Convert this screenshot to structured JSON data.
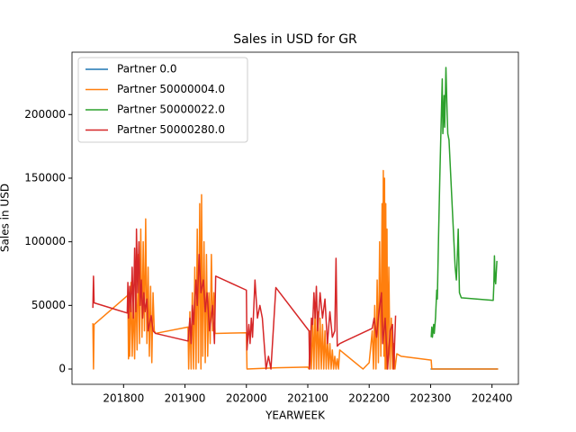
{
  "chart_data": {
    "type": "line",
    "title": "Sales in USD for GR",
    "xlabel": "YEARWEEK",
    "ylabel": "Sales in USD",
    "xlim": [
      201716,
      202443
    ],
    "xticks": [
      201800,
      201900,
      202000,
      202100,
      202200,
      202300,
      202400
    ],
    "ylim": [
      -12000,
      249000
    ],
    "yticks": [
      0,
      50000,
      100000,
      150000,
      200000
    ],
    "legend": "upper left",
    "series": [
      {
        "name": "Partner 0.0",
        "color": "#1f77b4",
        "x": [
          202300,
          202410
        ],
        "values": [
          0,
          0
        ]
      },
      {
        "name": "Partner 50000004.0",
        "color": "#ff7f0e",
        "x": [
          201750,
          201751,
          201752,
          201807,
          201808,
          201809,
          201810,
          201812,
          201814,
          201816,
          201818,
          201820,
          201822,
          201824,
          201826,
          201828,
          201830,
          201832,
          201834,
          201836,
          201838,
          201840,
          201842,
          201844,
          201846,
          201848,
          201850,
          201852,
          201905,
          201906,
          201908,
          201910,
          201912,
          201914,
          201916,
          201918,
          201920,
          201922,
          201924,
          201926,
          201927,
          201929,
          201931,
          201933,
          201935,
          201937,
          201939,
          201941,
          201943,
          201945,
          201947,
          201949,
          202000,
          202001,
          202050,
          202100,
          202102,
          202104,
          202106,
          202108,
          202110,
          202112,
          202114,
          202116,
          202118,
          202120,
          202122,
          202124,
          202126,
          202128,
          202130,
          202132,
          202134,
          202136,
          202138,
          202140,
          202142,
          202144,
          202146,
          202148,
          202150,
          202152,
          202190,
          202200,
          202205,
          202207,
          202209,
          202211,
          202213,
          202215,
          202217,
          202219,
          202221,
          202222,
          202223,
          202224,
          202225,
          202226,
          202227,
          202228,
          202229,
          202230,
          202232,
          202234,
          202236,
          202238,
          202240,
          202242,
          202245,
          202252,
          202301,
          202302,
          202410
        ],
        "values": [
          36000,
          0,
          35000,
          58000,
          8000,
          60000,
          10000,
          68000,
          10000,
          55000,
          8000,
          70000,
          15000,
          90000,
          20000,
          110000,
          25000,
          100000,
          30000,
          118000,
          20000,
          80000,
          10000,
          65000,
          5000,
          60000,
          30000,
          28000,
          33000,
          0,
          45000,
          0,
          60000,
          0,
          80000,
          0,
          110000,
          5000,
          130000,
          0,
          137000,
          10000,
          100000,
          5000,
          90000,
          10000,
          60000,
          20000,
          90000,
          30000,
          60000,
          28000,
          28500,
          0,
          1000,
          1500,
          0,
          30000,
          0,
          40000,
          0,
          50000,
          0,
          45000,
          0,
          40000,
          0,
          35000,
          0,
          30000,
          0,
          25000,
          0,
          20000,
          0,
          15000,
          0,
          10000,
          0,
          8000,
          0,
          15000,
          0,
          5000,
          30000,
          0,
          50000,
          0,
          70000,
          5000,
          100000,
          10000,
          130000,
          20000,
          156000,
          10000,
          150000,
          0,
          130000,
          0,
          110000,
          5000,
          80000,
          0,
          40000,
          0,
          20000,
          0,
          12000,
          10000,
          7000,
          0,
          0
        ]
      },
      {
        "name": "Partner 50000022.0",
        "color": "#2ca02c",
        "x": [
          202301,
          202302,
          202303,
          202305,
          202306,
          202308,
          202310,
          202311,
          202313,
          202315,
          202317,
          202319,
          202320,
          202322,
          202323,
          202325,
          202327,
          202328,
          202330,
          202333,
          202338,
          202340,
          202342,
          202344,
          202345,
          202347,
          202350,
          202402,
          202403,
          202404,
          202405,
          202406,
          202408
        ],
        "values": [
          25000,
          33000,
          25000,
          35000,
          28000,
          40000,
          62000,
          55000,
          105000,
          150000,
          190000,
          228000,
          185000,
          215000,
          190000,
          237000,
          200000,
          185000,
          180000,
          150000,
          100000,
          80000,
          70000,
          95000,
          110000,
          60000,
          56000,
          54000,
          66000,
          89000,
          70000,
          67000,
          85000
        ]
      },
      {
        "name": "Partner 50000280.0",
        "color": "#d62728",
        "x": [
          201750,
          201751,
          201752,
          201806,
          201807,
          201808,
          201810,
          201812,
          201814,
          201816,
          201818,
          201820,
          201821,
          201823,
          201825,
          201827,
          201829,
          201831,
          201833,
          201835,
          201838,
          201840,
          201845,
          201848,
          201852,
          201905,
          201908,
          201910,
          201912,
          201914,
          201918,
          201920,
          201923,
          201926,
          201930,
          201933,
          201936,
          201940,
          201945,
          201948,
          201950,
          202000,
          202001,
          202004,
          202006,
          202008,
          202010,
          202014,
          202018,
          202022,
          202026,
          202032,
          202036,
          202040,
          202048,
          202102,
          202103,
          202106,
          202108,
          202110,
          202112,
          202114,
          202116,
          202120,
          202124,
          202128,
          202132,
          202136,
          202140,
          202144,
          202146,
          202148,
          202152,
          202205,
          202208,
          202212,
          202216,
          202220,
          202222,
          202226,
          202230,
          202234,
          202238,
          202240,
          202243
        ],
        "values": [
          48000,
          73000,
          52000,
          44000,
          68000,
          40000,
          65000,
          45000,
          80000,
          40000,
          95000,
          45000,
          110000,
          60000,
          100000,
          50000,
          70000,
          40000,
          60000,
          45000,
          55000,
          30000,
          42000,
          30000,
          28000,
          22000,
          40000,
          20000,
          50000,
          35000,
          70000,
          50000,
          90000,
          60000,
          70000,
          45000,
          60000,
          30000,
          50000,
          20000,
          73000,
          62000,
          15000,
          35000,
          20000,
          40000,
          25000,
          70000,
          40000,
          50000,
          40000,
          0,
          10000,
          0,
          64000,
          30000,
          0,
          40000,
          35000,
          60000,
          40000,
          65000,
          30000,
          60000,
          40000,
          55000,
          20000,
          45000,
          25000,
          30000,
          87000,
          18000,
          20000,
          32000,
          40000,
          25000,
          45000,
          60000,
          20000,
          40000,
          0,
          30000,
          35000,
          0,
          42000
        ]
      }
    ]
  }
}
